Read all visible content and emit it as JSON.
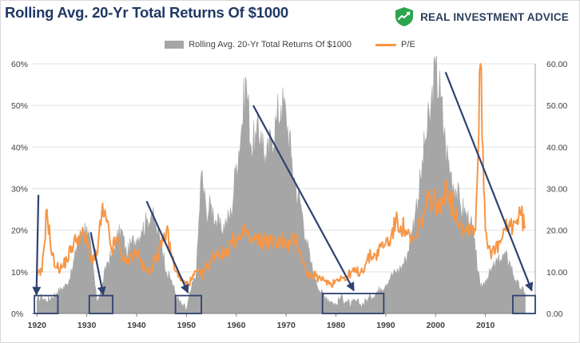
{
  "header": {
    "title": "Rolling Avg. 20-Yr Total Returns Of $1000",
    "brand": "REAL INVESTMENT ADVICE",
    "brand_icon": "shield-chart-icon",
    "brand_color": "#2ea44f"
  },
  "chart_data": {
    "type": "area",
    "series": [
      {
        "name": "Rolling Avg. 20-Yr Total Returns Of $1000",
        "type": "area",
        "axis": "left",
        "color": "#a6a6a6",
        "points": [
          [
            1920,
            3
          ],
          [
            1921,
            4
          ],
          [
            1922,
            3
          ],
          [
            1923,
            4
          ],
          [
            1924,
            5
          ],
          [
            1925,
            6
          ],
          [
            1926,
            7
          ],
          [
            1927,
            10
          ],
          [
            1928,
            16
          ],
          [
            1929,
            20
          ],
          [
            1930,
            21
          ],
          [
            1931,
            14
          ],
          [
            1932,
            3
          ],
          [
            1933,
            6
          ],
          [
            1934,
            12
          ],
          [
            1935,
            14
          ],
          [
            1936,
            18
          ],
          [
            1937,
            20
          ],
          [
            1938,
            14
          ],
          [
            1939,
            17
          ],
          [
            1940,
            18
          ],
          [
            1941,
            20
          ],
          [
            1942,
            22
          ],
          [
            1943,
            24
          ],
          [
            1944,
            20
          ],
          [
            1945,
            17
          ],
          [
            1946,
            10
          ],
          [
            1947,
            8
          ],
          [
            1948,
            4
          ],
          [
            1949,
            2
          ],
          [
            1950,
            1
          ],
          [
            1951,
            6
          ],
          [
            1952,
            10
          ],
          [
            1953,
            34
          ],
          [
            1954,
            24
          ],
          [
            1955,
            26
          ],
          [
            1956,
            22
          ],
          [
            1957,
            20
          ],
          [
            1958,
            22
          ],
          [
            1959,
            24
          ],
          [
            1960,
            36
          ],
          [
            1961,
            44
          ],
          [
            1962,
            56
          ],
          [
            1963,
            40
          ],
          [
            1964,
            42
          ],
          [
            1965,
            44
          ],
          [
            1966,
            36
          ],
          [
            1967,
            42
          ],
          [
            1968,
            46
          ],
          [
            1969,
            50
          ],
          [
            1970,
            48
          ],
          [
            1971,
            38
          ],
          [
            1972,
            30
          ],
          [
            1973,
            26
          ],
          [
            1974,
            18
          ],
          [
            1975,
            12
          ],
          [
            1976,
            8
          ],
          [
            1977,
            5
          ],
          [
            1978,
            4
          ],
          [
            1979,
            3
          ],
          [
            1980,
            2
          ],
          [
            1981,
            4
          ],
          [
            1982,
            3
          ],
          [
            1983,
            2
          ],
          [
            1984,
            3
          ],
          [
            1985,
            2
          ],
          [
            1986,
            3
          ],
          [
            1987,
            4
          ],
          [
            1988,
            5
          ],
          [
            1989,
            6
          ],
          [
            1990,
            7
          ],
          [
            1991,
            9
          ],
          [
            1992,
            10
          ],
          [
            1993,
            11
          ],
          [
            1994,
            13
          ],
          [
            1995,
            18
          ],
          [
            1996,
            25
          ],
          [
            1997,
            32
          ],
          [
            1998,
            42
          ],
          [
            1999,
            48
          ],
          [
            2000,
            59
          ],
          [
            2001,
            52
          ],
          [
            2002,
            40
          ],
          [
            2003,
            34
          ],
          [
            2004,
            30
          ],
          [
            2005,
            26
          ],
          [
            2006,
            24
          ],
          [
            2007,
            22
          ],
          [
            2008,
            15
          ],
          [
            2009,
            6
          ],
          [
            2010,
            8
          ],
          [
            2011,
            10
          ],
          [
            2012,
            12
          ],
          [
            2013,
            13
          ],
          [
            2014,
            14
          ],
          [
            2015,
            12
          ],
          [
            2016,
            8
          ],
          [
            2017,
            6
          ],
          [
            2018,
            5
          ]
        ]
      },
      {
        "name": "P/E",
        "type": "line",
        "axis": "right",
        "color": "#f79646",
        "points": [
          [
            1920,
            9
          ],
          [
            1921,
            10
          ],
          [
            1922,
            25
          ],
          [
            1923,
            14
          ],
          [
            1924,
            11
          ],
          [
            1925,
            11
          ],
          [
            1926,
            13
          ],
          [
            1927,
            16
          ],
          [
            1928,
            18
          ],
          [
            1929,
            19
          ],
          [
            1930,
            17
          ],
          [
            1931,
            13
          ],
          [
            1932,
            14
          ],
          [
            1933,
            24
          ],
          [
            1934,
            22
          ],
          [
            1935,
            15
          ],
          [
            1936,
            18
          ],
          [
            1937,
            14
          ],
          [
            1938,
            12
          ],
          [
            1939,
            14
          ],
          [
            1940,
            15
          ],
          [
            1941,
            12
          ],
          [
            1942,
            10
          ],
          [
            1943,
            11
          ],
          [
            1944,
            14
          ],
          [
            1945,
            16
          ],
          [
            1946,
            20
          ],
          [
            1947,
            14
          ],
          [
            1948,
            10
          ],
          [
            1949,
            8
          ],
          [
            1950,
            7
          ],
          [
            1951,
            8
          ],
          [
            1952,
            10
          ],
          [
            1953,
            9
          ],
          [
            1954,
            11
          ],
          [
            1955,
            13
          ],
          [
            1956,
            15
          ],
          [
            1957,
            14
          ],
          [
            1958,
            15
          ],
          [
            1959,
            17
          ],
          [
            1960,
            18
          ],
          [
            1961,
            18
          ],
          [
            1962,
            20
          ],
          [
            1963,
            17
          ],
          [
            1964,
            18
          ],
          [
            1965,
            17
          ],
          [
            1966,
            18
          ],
          [
            1967,
            17
          ],
          [
            1968,
            17
          ],
          [
            1969,
            18
          ],
          [
            1970,
            16
          ],
          [
            1971,
            17
          ],
          [
            1972,
            18
          ],
          [
            1973,
            14
          ],
          [
            1974,
            10
          ],
          [
            1975,
            9
          ],
          [
            1976,
            9
          ],
          [
            1977,
            8
          ],
          [
            1978,
            8
          ],
          [
            1979,
            7
          ],
          [
            1980,
            8
          ],
          [
            1981,
            9
          ],
          [
            1982,
            8
          ],
          [
            1983,
            10
          ],
          [
            1984,
            10
          ],
          [
            1985,
            10
          ],
          [
            1986,
            12
          ],
          [
            1987,
            14
          ],
          [
            1988,
            14
          ],
          [
            1989,
            16
          ],
          [
            1990,
            17
          ],
          [
            1991,
            18
          ],
          [
            1992,
            22
          ],
          [
            1993,
            21
          ],
          [
            1994,
            20
          ],
          [
            1995,
            17
          ],
          [
            1996,
            18
          ],
          [
            1997,
            22
          ],
          [
            1998,
            25
          ],
          [
            1999,
            28
          ],
          [
            2000,
            27
          ],
          [
            2001,
            24
          ],
          [
            2002,
            32
          ],
          [
            2003,
            27
          ],
          [
            2004,
            24
          ],
          [
            2005,
            22
          ],
          [
            2006,
            20
          ],
          [
            2007,
            21
          ],
          [
            2008,
            20
          ],
          [
            2009,
            60
          ],
          [
            2010,
            20
          ],
          [
            2011,
            15
          ],
          [
            2012,
            15
          ],
          [
            2013,
            17
          ],
          [
            2014,
            20
          ],
          [
            2015,
            21
          ],
          [
            2016,
            22
          ],
          [
            2017,
            24
          ],
          [
            2018,
            21
          ]
        ]
      }
    ],
    "x_ticks": [
      "1920",
      "1930",
      "1940",
      "1950",
      "1960",
      "1970",
      "1980",
      "1990",
      "2000",
      "2010"
    ],
    "xlim": [
      1919,
      2020
    ],
    "y_left": {
      "ticks": [
        "0%",
        "10%",
        "20%",
        "30%",
        "40%",
        "50%",
        "60%"
      ],
      "lim": [
        0,
        60
      ]
    },
    "y_right": {
      "ticks": [
        "0.00",
        "10.00",
        "20.00",
        "30.00",
        "40.00",
        "50.00",
        "60.00"
      ],
      "lim": [
        0,
        60
      ]
    },
    "legend": {
      "position": "top-center"
    },
    "grid": "horizontal",
    "annotations": {
      "arrow_color": "#2e4270",
      "arrows": [
        {
          "from": [
            1920.3,
            28.5
          ],
          "to": [
            1919.9,
            4.5
          ]
        },
        {
          "from": [
            1930.8,
            19.5
          ],
          "to": [
            1933.3,
            4.5
          ]
        },
        {
          "from": [
            1942.0,
            27.0
          ],
          "to": [
            1950.3,
            5.0
          ]
        },
        {
          "from": [
            1963.4,
            50.0
          ],
          "to": [
            1983.6,
            5.5
          ]
        },
        {
          "from": [
            2002.0,
            58.0
          ],
          "to": [
            2019.3,
            5.5
          ]
        }
      ],
      "boxes": [
        {
          "x": [
            1919.5,
            1924.2
          ],
          "y": [
            0,
            4.3
          ]
        },
        {
          "x": [
            1930.5,
            1935.2
          ],
          "y": [
            0,
            4.3
          ]
        },
        {
          "x": [
            1947.8,
            1953.0
          ],
          "y": [
            0,
            4.3
          ]
        },
        {
          "x": [
            1977.3,
            1989.6
          ],
          "y": [
            0,
            4.8
          ]
        },
        {
          "x": [
            2015.5,
            2020.0
          ],
          "y": [
            0,
            4.3
          ]
        }
      ]
    }
  }
}
